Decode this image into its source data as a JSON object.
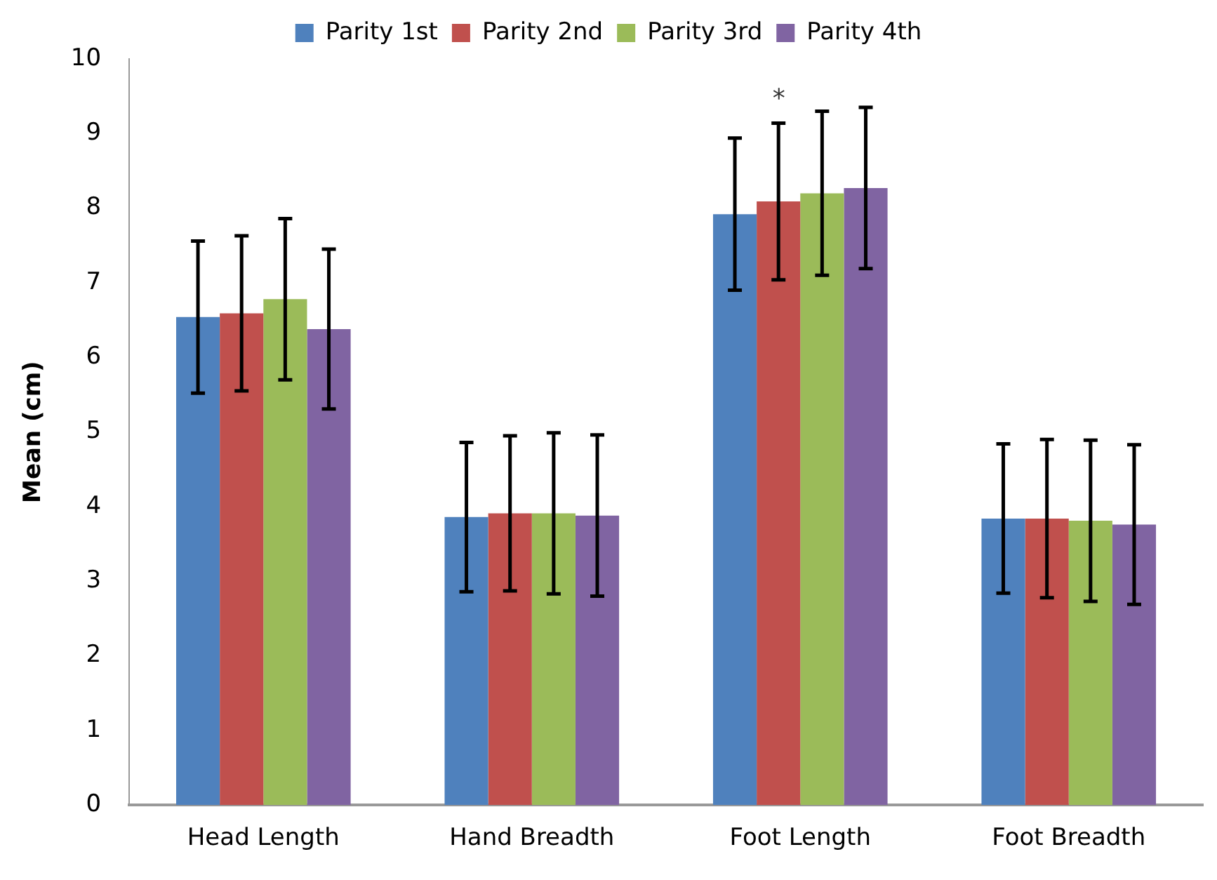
{
  "chart_data": {
    "type": "bar",
    "ylabel": "Mean (cm)",
    "categories": [
      "Head Length",
      "Hand Breadth",
      "Foot Length",
      "Foot Breadth"
    ],
    "series": [
      {
        "name": "Parity 1st",
        "color": "#4f81bd",
        "values": [
          6.54,
          3.86,
          7.92,
          3.84
        ],
        "errors": [
          1.02,
          1.0,
          1.02,
          1.0
        ]
      },
      {
        "name": "Parity 2nd",
        "color": "#c0504d",
        "values": [
          6.59,
          3.91,
          8.09,
          3.84
        ],
        "errors": [
          1.04,
          1.04,
          1.05,
          1.06
        ]
      },
      {
        "name": "Parity 3rd",
        "color": "#9bbb59",
        "values": [
          6.78,
          3.91,
          8.2,
          3.81
        ],
        "errors": [
          1.08,
          1.08,
          1.1,
          1.08
        ]
      },
      {
        "name": "Parity 4th",
        "color": "#8064a2",
        "values": [
          6.38,
          3.88,
          8.27,
          3.76
        ],
        "errors": [
          1.07,
          1.08,
          1.08,
          1.07
        ]
      }
    ],
    "ylim": [
      0,
      10
    ],
    "yticks": [
      0,
      1,
      2,
      3,
      4,
      5,
      6,
      7,
      8,
      9,
      10
    ],
    "grid": false,
    "legend": "top",
    "annotations": [
      "*"
    ]
  }
}
